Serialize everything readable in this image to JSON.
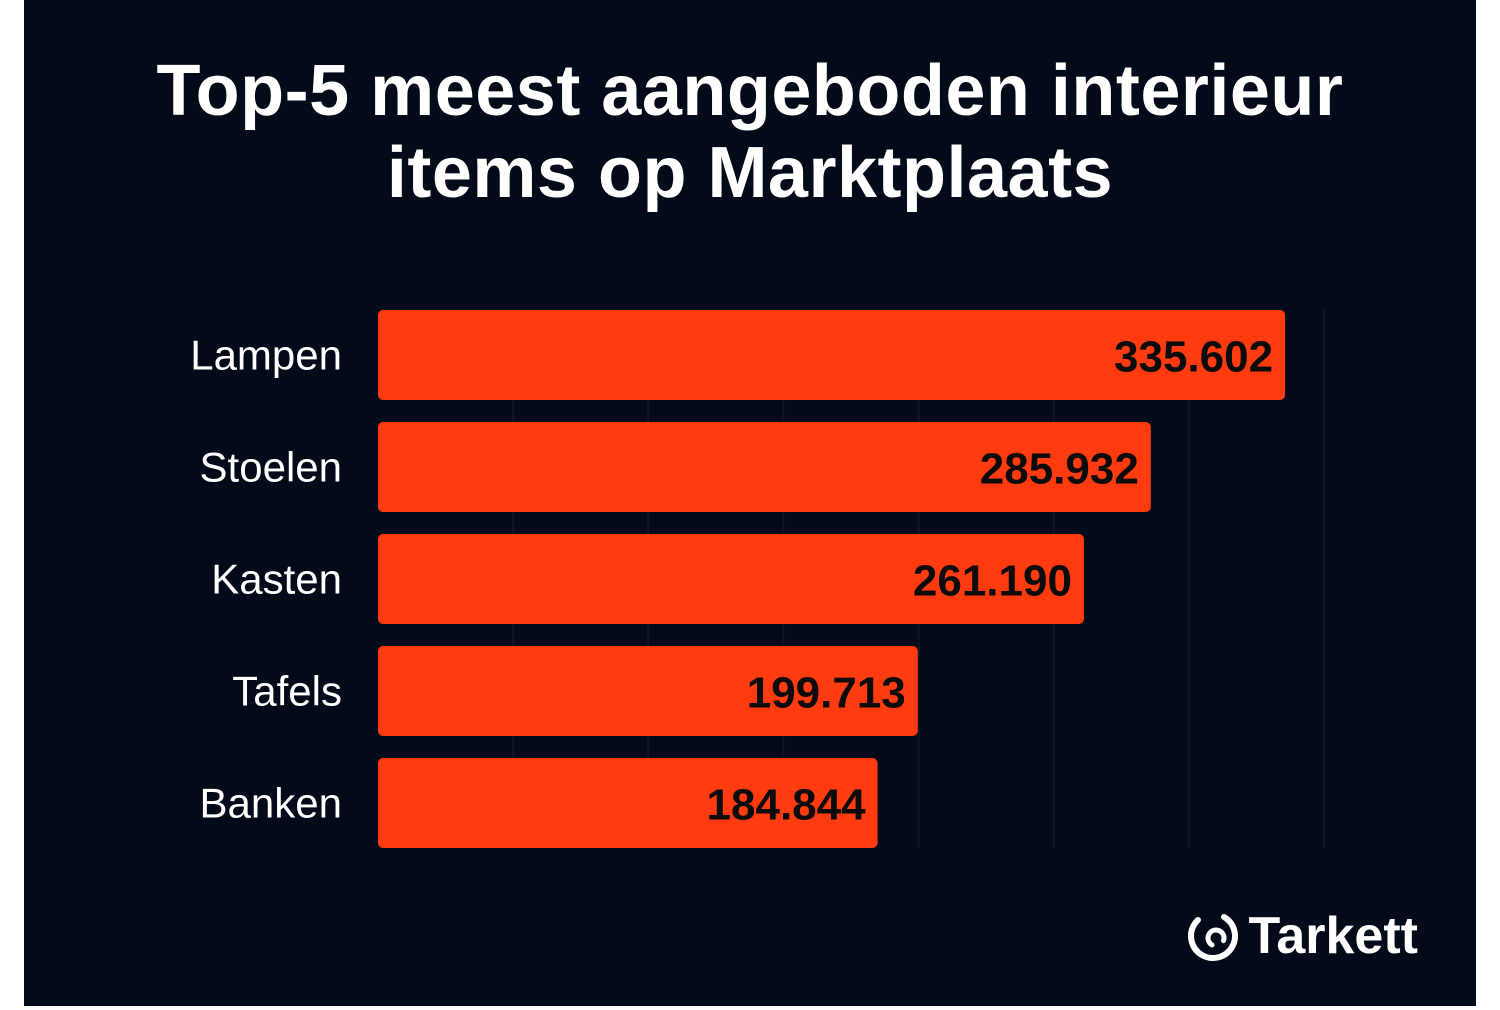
{
  "chart": {
    "title_line1": "Top-5 meest aangeboden interieur",
    "title_line2": "items op Marktplaats"
  },
  "brand": {
    "name": "Tarkett",
    "icon": "tarkett-swirl-logo"
  },
  "colors": {
    "background": "#030a1a",
    "bar": "#ff3b0f",
    "value_text": "#0b0b0b",
    "label_text": "#ffffff",
    "gridline": "#0d1628"
  },
  "chart_data": {
    "type": "bar",
    "orientation": "horizontal",
    "title": "Top-5 meest aangeboden interieur items op Marktplaats",
    "categories": [
      "Lampen",
      "Stoelen",
      "Kasten",
      "Tafels",
      "Banken"
    ],
    "values": [
      335602,
      285932,
      261190,
      199713,
      184844
    ],
    "value_labels": [
      "335.602",
      "285.932",
      "261.190",
      "199.713",
      "184.844"
    ],
    "xlim": [
      0,
      350000
    ],
    "grid": true,
    "legend": "none"
  }
}
